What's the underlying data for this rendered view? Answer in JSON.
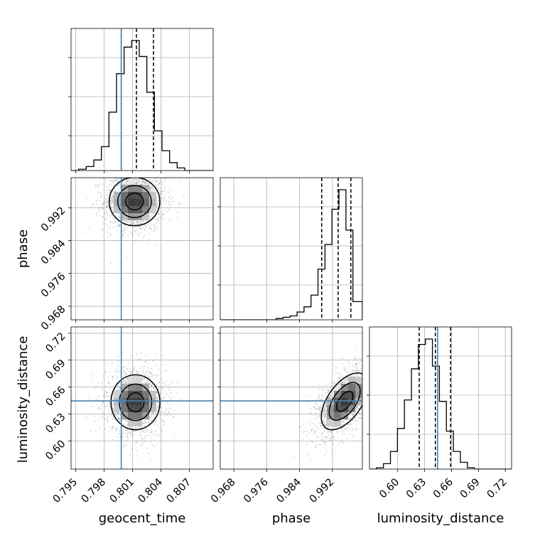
{
  "chart_data": {
    "type": "corner",
    "parameters": [
      "geocent_time",
      "phase",
      "luminosity_distance"
    ],
    "axis_labels": {
      "geocent_time": "geocent_time",
      "phase": "phase",
      "luminosity_distance": "luminosity_distance"
    },
    "ranges": {
      "geocent_time": [
        0.7945,
        0.8095
      ],
      "phase": [
        0.9647,
        0.9993
      ],
      "luminosity_distance": [
        0.5685,
        0.727
      ]
    },
    "ticks": {
      "geocent_time": [
        "0.795",
        "0.798",
        "0.801",
        "0.804",
        "0.807"
      ],
      "phase": [
        "0.968",
        "0.976",
        "0.984",
        "0.992"
      ],
      "luminosity_distance": [
        "0.60",
        "0.63",
        "0.66",
        "0.69",
        "0.72"
      ]
    },
    "truths": {
      "geocent_time": 0.7998,
      "phase": null,
      "luminosity_distance": 0.6445
    },
    "quantiles": {
      "geocent_time": [
        0.7998,
        0.8014,
        0.8032
      ],
      "phase": [
        0.9894,
        0.9934,
        0.9965
      ],
      "luminosity_distance": [
        0.624,
        0.642,
        0.659
      ]
    },
    "histograms": {
      "geocent_time": {
        "bin_edges": [
          0.7945,
          0.7953,
          0.7961,
          0.7969,
          0.7977,
          0.7985,
          0.7993,
          0.8001,
          0.8009,
          0.8017,
          0.8025,
          0.8033,
          0.8041,
          0.8049,
          0.8057,
          0.8065,
          0.8073,
          0.8081,
          0.8089,
          0.8095
        ],
        "counts": [
          0.0,
          0.01,
          0.03,
          0.08,
          0.18,
          0.44,
          0.73,
          0.93,
          0.98,
          0.86,
          0.59,
          0.3,
          0.15,
          0.06,
          0.02,
          0.0,
          0.0,
          0.0,
          0.0
        ]
      },
      "phase": {
        "bin_edges": [
          0.9647,
          0.9664,
          0.9681,
          0.9698,
          0.9715,
          0.9732,
          0.9749,
          0.9766,
          0.9783,
          0.98,
          0.9817,
          0.9834,
          0.9851,
          0.9868,
          0.9885,
          0.9902,
          0.9919,
          0.9936,
          0.9953,
          0.997,
          0.9993
        ],
        "counts": [
          0.0,
          0.0,
          0.0,
          0.0,
          0.0,
          0.0,
          0.0,
          0.0,
          0.01,
          0.02,
          0.03,
          0.06,
          0.1,
          0.19,
          0.39,
          0.58,
          0.85,
          1.0,
          0.69,
          0.14
        ]
      },
      "luminosity_distance": {
        "bin_edges": [
          0.5685,
          0.5763,
          0.5841,
          0.5919,
          0.5997,
          0.6075,
          0.6153,
          0.6231,
          0.6309,
          0.6387,
          0.6465,
          0.6543,
          0.6621,
          0.6699,
          0.6777,
          0.6855,
          0.6933,
          0.7011,
          0.7089,
          0.7167,
          0.727
        ],
        "counts": [
          0.0,
          0.01,
          0.04,
          0.13,
          0.3,
          0.51,
          0.74,
          0.92,
          0.96,
          0.76,
          0.5,
          0.28,
          0.13,
          0.05,
          0.01,
          0.0,
          0.0,
          0.0,
          0.0,
          0.0
        ]
      }
    },
    "joint": [
      {
        "x": "geocent_time",
        "y": "phase",
        "mean": [
          0.8012,
          0.9935
        ],
        "sd": [
          0.0015,
          0.0033
        ],
        "rho": 0.0
      },
      {
        "x": "geocent_time",
        "y": "luminosity_distance",
        "mean": [
          0.8013,
          0.643
        ],
        "sd": [
          0.00145,
          0.0172
        ],
        "rho": 0.0
      },
      {
        "x": "phase",
        "y": "luminosity_distance",
        "mean": [
          0.995,
          0.644
        ],
        "sd": [
          0.0032,
          0.0178
        ],
        "rho": 0.55
      }
    ],
    "colors": {
      "truth": "#4682b4",
      "histogram": "#000000",
      "contour": "#000000",
      "grid": "#b0b0b0",
      "samples": "#9a9a9a"
    },
    "grid": true,
    "legend": "none"
  }
}
